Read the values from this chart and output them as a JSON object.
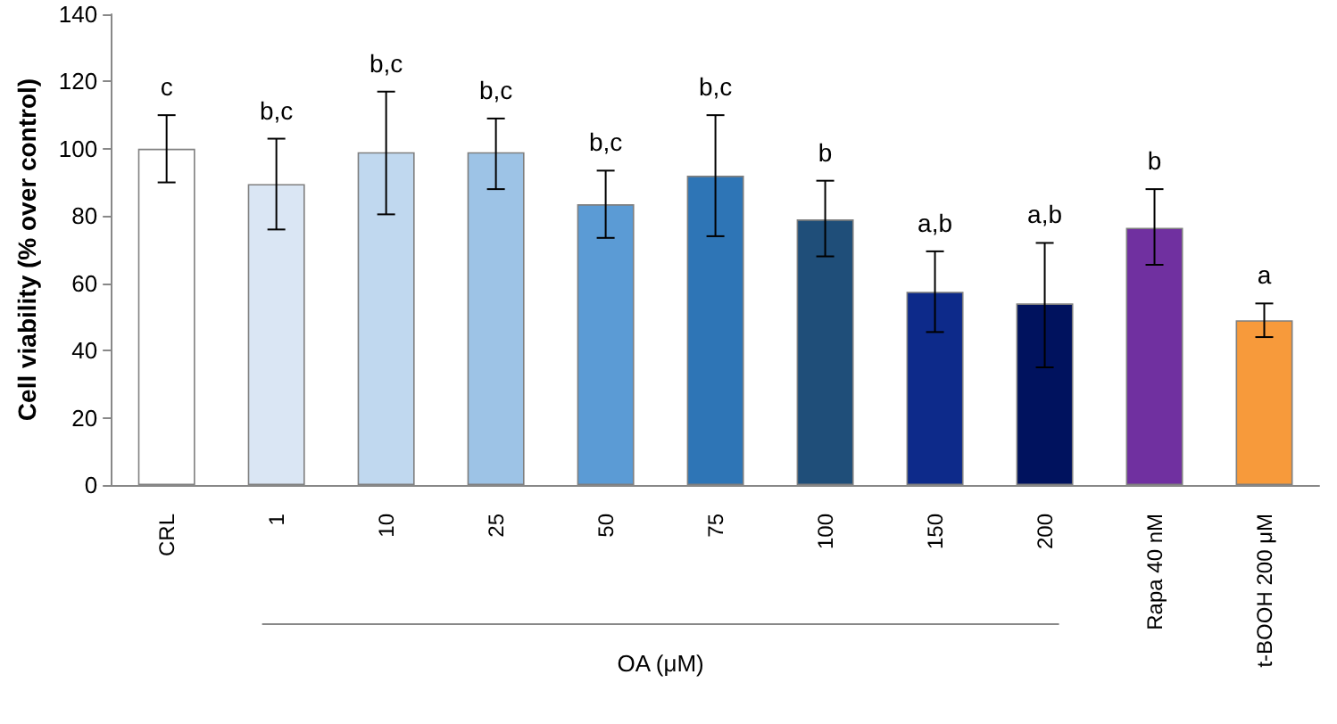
{
  "chart_data": {
    "type": "bar",
    "ylabel": "Cell viability (% over control)",
    "xlabel": "OA (μM)",
    "categories": [
      "CRL",
      "1",
      "10",
      "25",
      "50",
      "75",
      "100",
      "150",
      "200",
      "Rapa 40 nM",
      "t-BOOH 200 μM"
    ],
    "values": [
      100,
      89.5,
      99,
      99,
      83.5,
      92,
      79,
      57.5,
      54,
      76.5,
      49
    ],
    "colors": [
      "#ffffff",
      "#dae6f4",
      "#c0d8ef",
      "#9dc3e6",
      "#5b9bd5",
      "#2e75b6",
      "#1f4e79",
      "#0d2a8a",
      "#00125e",
      "#7030a0",
      "#f79a3b"
    ],
    "errors": [
      [
        90,
        110
      ],
      [
        76,
        103
      ],
      [
        80.5,
        117
      ],
      [
        88,
        109
      ],
      [
        73.5,
        93.5
      ],
      [
        74,
        110
      ],
      [
        68,
        90.5
      ],
      [
        45.5,
        69.5
      ],
      [
        35,
        72
      ],
      [
        65.5,
        88
      ],
      [
        44,
        54
      ]
    ],
    "ylim": [
      0,
      140
    ],
    "yticks": [
      0,
      20,
      40,
      60,
      80,
      100,
      120,
      140
    ],
    "grid": false,
    "annotations": [
      "c",
      "b,c",
      "b,c",
      "b,c",
      "b,c",
      "b,c",
      "b",
      "a,b",
      "a,b",
      "b",
      "a"
    ]
  }
}
